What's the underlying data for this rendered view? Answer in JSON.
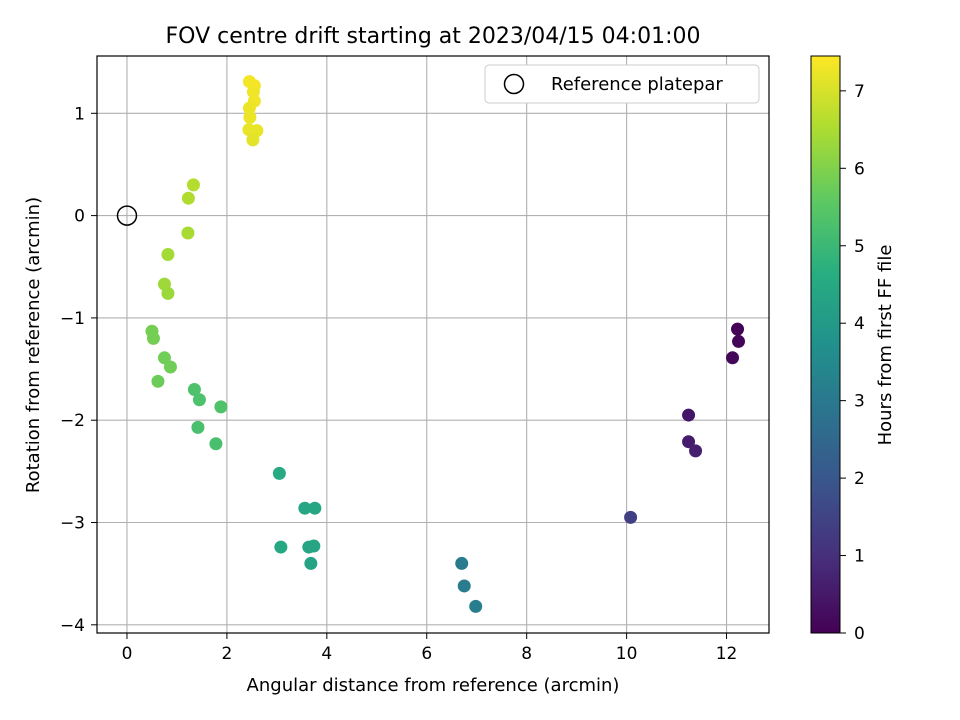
{
  "chart_data": {
    "type": "scatter",
    "title": "FOV centre drift starting at 2023/04/15 04:01:00",
    "xlabel": "Angular distance from reference (arcmin)",
    "ylabel": "Rotation from reference (arcmin)",
    "colorbar_label": "Hours from first FF file",
    "xlim": [
      -0.6,
      12.85
    ],
    "ylim": [
      -4.08,
      1.56
    ],
    "clim": [
      0,
      7.45
    ],
    "x_ticks": [
      0,
      2,
      4,
      6,
      8,
      10,
      12
    ],
    "y_ticks": [
      1,
      0,
      -1,
      -2,
      -3,
      -4
    ],
    "y_tick_labels": [
      "1",
      "0",
      "−1",
      "−2",
      "−3",
      "−4"
    ],
    "colorbar_ticks": [
      0,
      1,
      2,
      3,
      4,
      5,
      6,
      7
    ],
    "grid": true,
    "legend": {
      "position": "top-right",
      "entries": [
        "Reference platepar"
      ]
    },
    "colormap": "viridis",
    "reference_point": {
      "x": 0,
      "y": 0
    },
    "points": [
      {
        "x": 12.22,
        "y": -1.11,
        "hours": 0.05
      },
      {
        "x": 12.24,
        "y": -1.23,
        "hours": 0.1
      },
      {
        "x": 12.12,
        "y": -1.39,
        "hours": 0.15
      },
      {
        "x": 11.24,
        "y": -1.95,
        "hours": 0.45
      },
      {
        "x": 11.24,
        "y": -2.21,
        "hours": 0.55
      },
      {
        "x": 11.38,
        "y": -2.3,
        "hours": 0.65
      },
      {
        "x": 10.08,
        "y": -2.95,
        "hours": 1.4
      },
      {
        "x": 6.7,
        "y": -3.4,
        "hours": 3.05
      },
      {
        "x": 6.75,
        "y": -3.62,
        "hours": 3.1
      },
      {
        "x": 6.98,
        "y": -3.82,
        "hours": 3.15
      },
      {
        "x": 3.05,
        "y": -2.52,
        "hours": 4.5
      },
      {
        "x": 3.08,
        "y": -3.24,
        "hours": 4.45
      },
      {
        "x": 3.56,
        "y": -2.86,
        "hours": 4.4
      },
      {
        "x": 3.76,
        "y": -2.86,
        "hours": 4.4
      },
      {
        "x": 3.64,
        "y": -3.24,
        "hours": 4.35
      },
      {
        "x": 3.74,
        "y": -3.23,
        "hours": 4.35
      },
      {
        "x": 3.68,
        "y": -3.4,
        "hours": 4.3
      },
      {
        "x": 1.35,
        "y": -1.7,
        "hours": 5.3
      },
      {
        "x": 1.45,
        "y": -1.8,
        "hours": 5.3
      },
      {
        "x": 1.42,
        "y": -2.07,
        "hours": 5.25
      },
      {
        "x": 1.78,
        "y": -2.23,
        "hours": 5.25
      },
      {
        "x": 1.88,
        "y": -1.87,
        "hours": 5.35
      },
      {
        "x": 0.5,
        "y": -1.13,
        "hours": 5.85
      },
      {
        "x": 0.53,
        "y": -1.2,
        "hours": 5.85
      },
      {
        "x": 0.75,
        "y": -1.39,
        "hours": 5.8
      },
      {
        "x": 0.87,
        "y": -1.48,
        "hours": 5.8
      },
      {
        "x": 0.62,
        "y": -1.62,
        "hours": 5.75
      },
      {
        "x": 0.75,
        "y": -0.67,
        "hours": 6.35
      },
      {
        "x": 0.82,
        "y": -0.76,
        "hours": 6.3
      },
      {
        "x": 0.82,
        "y": -0.38,
        "hours": 6.4
      },
      {
        "x": 1.22,
        "y": -0.17,
        "hours": 6.45
      },
      {
        "x": 1.23,
        "y": 0.17,
        "hours": 6.55
      },
      {
        "x": 1.33,
        "y": 0.3,
        "hours": 6.6
      },
      {
        "x": 2.45,
        "y": 1.31,
        "hours": 7.35
      },
      {
        "x": 2.55,
        "y": 1.27,
        "hours": 7.35
      },
      {
        "x": 2.53,
        "y": 1.21,
        "hours": 7.3
      },
      {
        "x": 2.55,
        "y": 1.12,
        "hours": 7.3
      },
      {
        "x": 2.45,
        "y": 1.05,
        "hours": 7.25
      },
      {
        "x": 2.46,
        "y": 0.96,
        "hours": 7.25
      },
      {
        "x": 2.44,
        "y": 0.84,
        "hours": 7.2
      },
      {
        "x": 2.6,
        "y": 0.83,
        "hours": 7.2
      },
      {
        "x": 2.52,
        "y": 0.74,
        "hours": 7.15
      }
    ]
  }
}
